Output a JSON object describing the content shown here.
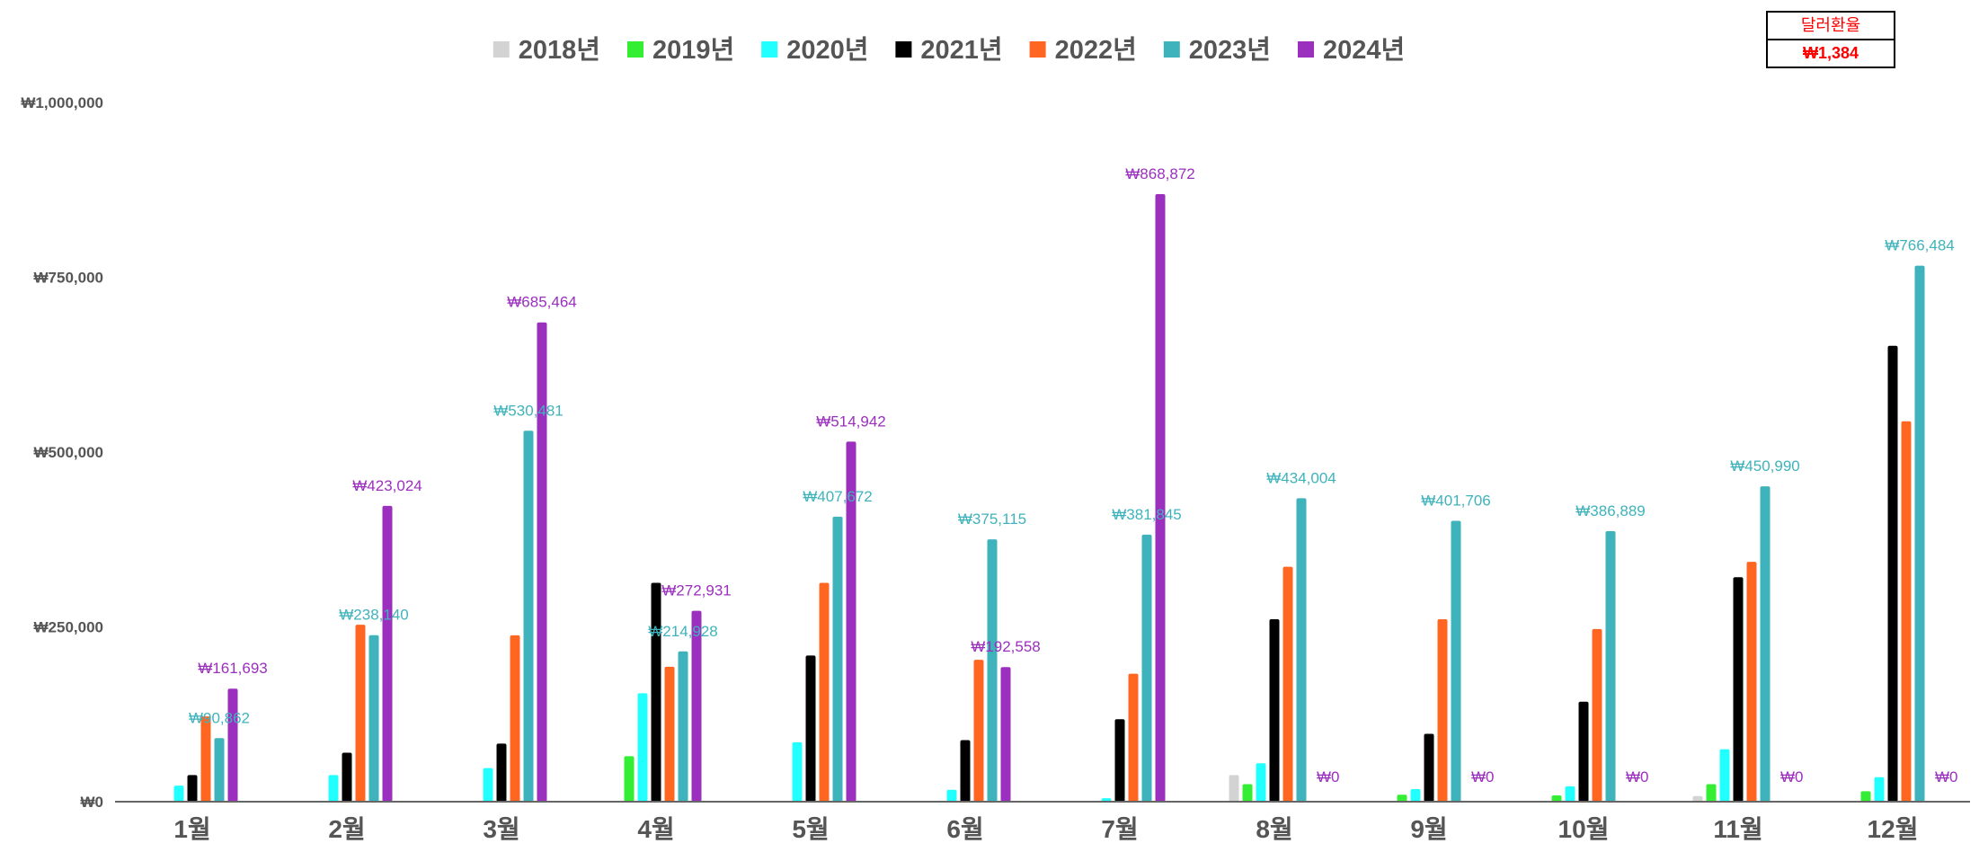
{
  "exchange_rate": {
    "label": "달러환율",
    "value": "₩1,384"
  },
  "chart_data": {
    "type": "bar",
    "title": "",
    "xlabel": "",
    "ylabel": "",
    "ylim": [
      0,
      1000000
    ],
    "yticks": [
      0,
      250000,
      500000,
      750000,
      1000000
    ],
    "ytick_labels": [
      "₩0",
      "₩250,000",
      "₩500,000",
      "₩750,000",
      "₩1,000,000"
    ],
    "grid": false,
    "legend_position": "top-center",
    "categories": [
      "1월",
      "2월",
      "3월",
      "4월",
      "5월",
      "6월",
      "7월",
      "8월",
      "9월",
      "10월",
      "11월",
      "12월"
    ],
    "series": [
      {
        "name": "2018년",
        "color": "#d3d3d3",
        "values": [
          0,
          0,
          0,
          0,
          0,
          0,
          0,
          38000,
          0,
          0,
          8000,
          0
        ]
      },
      {
        "name": "2019년",
        "color": "#33ee33",
        "values": [
          0,
          0,
          0,
          65000,
          0,
          0,
          0,
          25000,
          10000,
          9000,
          25000,
          15000
        ]
      },
      {
        "name": "2020년",
        "color": "#22ffff",
        "values": [
          23000,
          38000,
          48000,
          155000,
          85000,
          17000,
          5000,
          55000,
          18000,
          22000,
          75000,
          35000
        ]
      },
      {
        "name": "2021년",
        "color": "#000000",
        "values": [
          38000,
          70000,
          83000,
          313000,
          209000,
          88000,
          118000,
          261000,
          97000,
          143000,
          321000,
          652000
        ]
      },
      {
        "name": "2022년",
        "color": "#ff6622",
        "values": [
          122000,
          253000,
          238000,
          193000,
          313000,
          203000,
          183000,
          336000,
          261000,
          247000,
          343000,
          544000
        ]
      },
      {
        "name": "2023년",
        "color": "#3fb3bb",
        "values": [
          90862,
          238140,
          530481,
          214928,
          407672,
          375115,
          381845,
          434004,
          401706,
          386889,
          450990,
          766484
        ],
        "labels": [
          "₩90,862",
          "₩238,140",
          "₩530,481",
          "₩214,928",
          "₩407,672",
          "₩375,115",
          "₩381,845",
          "₩434,004",
          "₩401,706",
          "₩386,889",
          "₩450,990",
          "₩766,484"
        ]
      },
      {
        "name": "2024년",
        "color": "#9b2fbe",
        "values": [
          161693,
          423024,
          685464,
          272931,
          514942,
          192558,
          868872,
          0,
          0,
          0,
          0,
          0
        ],
        "labels": [
          "₩161,693",
          "₩423,024",
          "₩685,464",
          "₩272,931",
          "₩514,942",
          "₩192,558",
          "₩868,872",
          "₩0",
          "₩0",
          "₩0",
          "₩0",
          "₩0"
        ]
      }
    ]
  }
}
